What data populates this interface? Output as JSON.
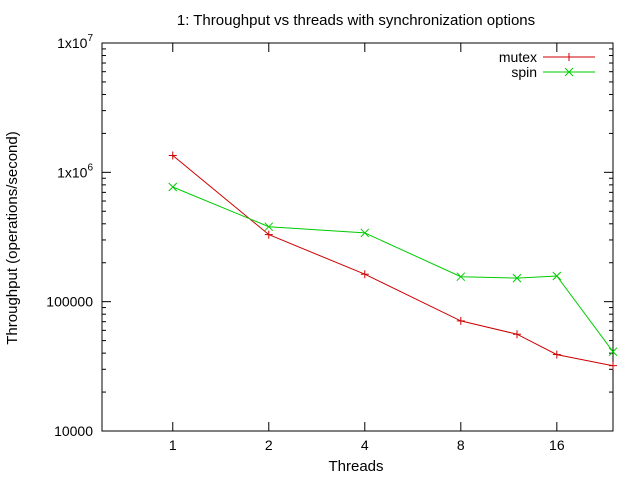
{
  "chart_data": {
    "type": "line",
    "title": "1: Throughput vs threads with synchronization options",
    "xlabel": "Threads",
    "ylabel": "Throughput (operations/second)",
    "x_scale": "log2",
    "y_scale": "log10",
    "xlim": [
      0.6,
      24
    ],
    "ylim": [
      10000,
      10000000
    ],
    "x_ticks": [
      {
        "value": 1,
        "label": "1"
      },
      {
        "value": 2,
        "label": "2"
      },
      {
        "value": 4,
        "label": "4"
      },
      {
        "value": 8,
        "label": "8"
      },
      {
        "value": 16,
        "label": "16"
      }
    ],
    "y_ticks": [
      {
        "value": 10000,
        "label": "10000"
      },
      {
        "value": 100000,
        "label": "100000"
      },
      {
        "value": 1000000,
        "label": "1x10",
        "sup": "6"
      },
      {
        "value": 10000000,
        "label": "1x10",
        "sup": "7"
      }
    ],
    "grid": false,
    "legend_position": "top-right",
    "series": [
      {
        "name": "mutex",
        "color": "#cc0000",
        "marker": "plus",
        "x": [
          1,
          2,
          4,
          8,
          12,
          16,
          24
        ],
        "y": [
          1350000,
          330000,
          163000,
          71000,
          56000,
          39000,
          32000
        ]
      },
      {
        "name": "spin",
        "color": "#00cc00",
        "marker": "cross",
        "x": [
          1,
          2,
          4,
          8,
          12,
          16,
          24
        ],
        "y": [
          770000,
          380000,
          340000,
          156000,
          152000,
          158000,
          41000
        ]
      }
    ]
  }
}
